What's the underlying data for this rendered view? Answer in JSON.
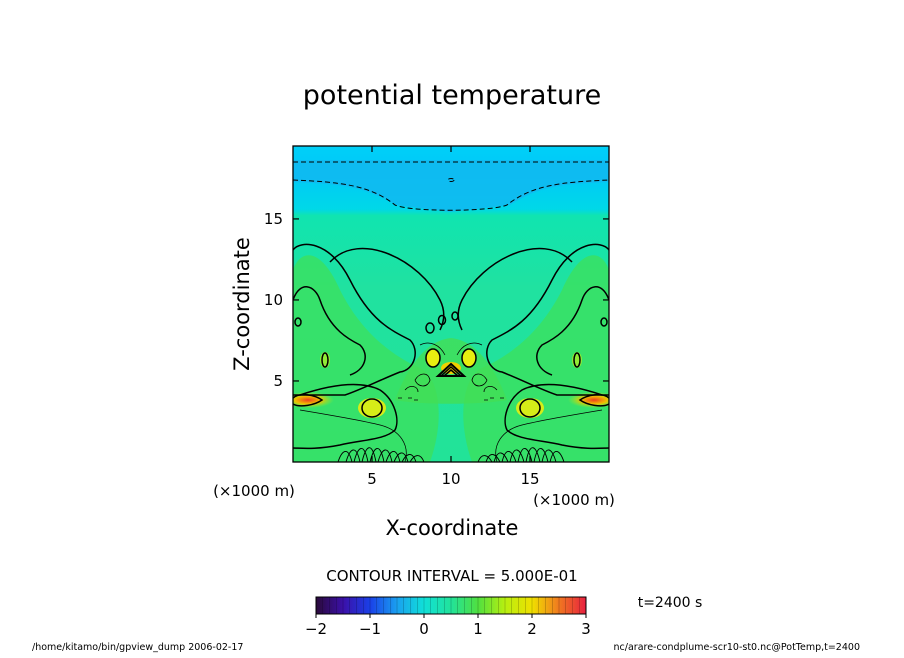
{
  "chart_data": {
    "type": "heatmap",
    "title": "potential temperature",
    "xlabel": "X-coordinate",
    "ylabel": "Z-coordinate",
    "x_unit": "(×1000 m)",
    "y_unit": "(×1000 m)",
    "xlim": [
      0,
      20
    ],
    "ylim": [
      0,
      19.5
    ],
    "x_ticks": [
      5,
      10,
      15
    ],
    "y_ticks": [
      5,
      10,
      15
    ],
    "contour_interval_label": "CONTOUR INTERVAL = 5.000E-01",
    "contour_interval": 0.5,
    "time_label": "t=2400 s",
    "colorbar": {
      "range": [
        -2,
        3
      ],
      "ticks": [
        "−2",
        "−1",
        "0",
        "1",
        "2",
        "3"
      ],
      "tick_values": [
        -2,
        -1,
        0,
        1,
        2,
        3
      ]
    },
    "colors": {
      "upper_layer": "#00d2f8",
      "stratosphere": "#11b8f2",
      "mid_background": "#22e39a",
      "plume": "#4ae24a",
      "warm_core": "#f5ef00",
      "hot_core": "#f05a1e"
    }
  },
  "footer": {
    "left": "/home/kitamo/bin/gpview_dump   2006-02-17",
    "right": "nc/arare-condplume-scr10-st0.nc@PotTemp,t=2400"
  }
}
